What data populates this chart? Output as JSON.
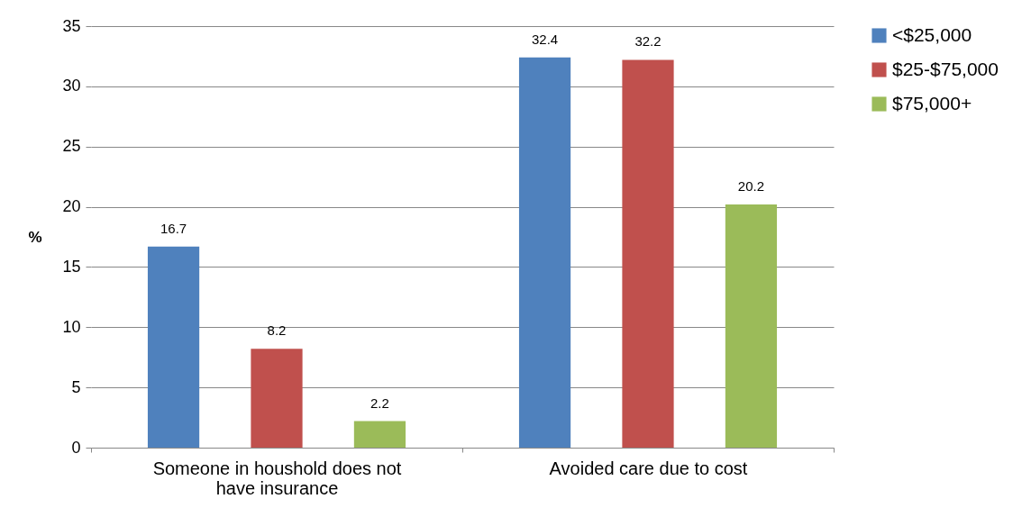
{
  "chart_data": {
    "type": "bar",
    "ylabel": "%",
    "categories": [
      "Someone in houshold does not have insurance",
      "Avoided care due to cost"
    ],
    "series": [
      {
        "name": "<$25,000",
        "color": "#4f81bd",
        "values": [
          16.7,
          32.4
        ]
      },
      {
        "name": "$25-$75,000",
        "color": "#c0504d",
        "values": [
          8.2,
          32.2
        ]
      },
      {
        "name": "$75,000+",
        "color": "#9bbb59",
        "values": [
          2.2,
          20.2
        ]
      }
    ],
    "ylim": [
      0,
      35
    ],
    "yticks": [
      0,
      5,
      10,
      15,
      20,
      25,
      30,
      35
    ],
    "grid": "y",
    "legend": "right",
    "data_labels": true
  }
}
